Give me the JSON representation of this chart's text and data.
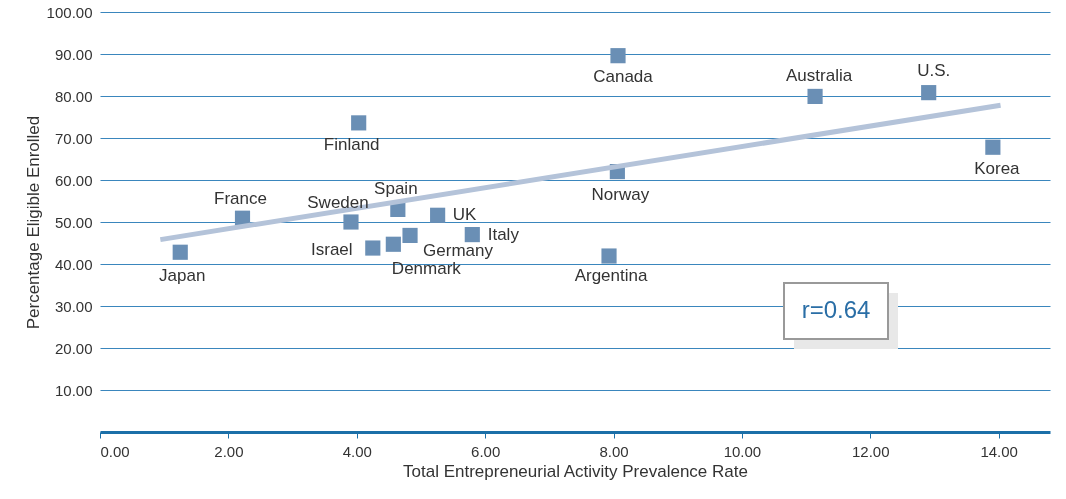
{
  "chart_data": {
    "type": "scatter",
    "xlabel": "Total Entrepreneurial Activity Prevalence Rate",
    "ylabel": "Percentage Eligible Enrolled",
    "xlim": [
      0,
      14.8
    ],
    "ylim": [
      0,
      100
    ],
    "xticks": [
      {
        "value": 0,
        "label": "0.00"
      },
      {
        "value": 2,
        "label": "2.00"
      },
      {
        "value": 4,
        "label": "4.00"
      },
      {
        "value": 6,
        "label": "6.00"
      },
      {
        "value": 8,
        "label": "8.00"
      },
      {
        "value": 10,
        "label": "10.00"
      },
      {
        "value": 12,
        "label": "12.00"
      },
      {
        "value": 14,
        "label": "14.00"
      }
    ],
    "yticks": [
      {
        "value": 10,
        "label": "10.00"
      },
      {
        "value": 20,
        "label": "20.00"
      },
      {
        "value": 30,
        "label": "30.00"
      },
      {
        "value": 40,
        "label": "40.00"
      },
      {
        "value": 50,
        "label": "50.00"
      },
      {
        "value": 60,
        "label": "60.00"
      },
      {
        "value": 70,
        "label": "70.00"
      },
      {
        "value": 80,
        "label": "80.00"
      },
      {
        "value": 90,
        "label": "90.00"
      },
      {
        "value": 100,
        "label": "100.00"
      }
    ],
    "grid": "y",
    "series": [
      {
        "type": "scatter",
        "marker": "square",
        "color": "#6a8fb5",
        "x": [
          1.25,
          2.22,
          3.91,
          4.03,
          4.25,
          4.57,
          4.64,
          4.83,
          5.26,
          5.8,
          7.93,
          8.06,
          8.07,
          11.14,
          12.91,
          13.91
        ],
        "values": [
          42.8,
          50.9,
          50.0,
          73.6,
          43.8,
          44.7,
          53.0,
          46.8,
          51.6,
          47.0,
          41.9,
          62.0,
          89.6,
          79.9,
          80.8,
          67.8
        ]
      },
      {
        "type": "line",
        "marker": "none",
        "color": "#b4c3d9",
        "x": [
          0.94,
          14.03
        ],
        "values": [
          45.8,
          77.8
        ]
      }
    ],
    "annotations": [
      {
        "text": "Japan",
        "x": 1.25,
        "y": 42.8
      },
      {
        "text": "France",
        "x": 2.22,
        "y": 50.9
      },
      {
        "text": "Sweden",
        "x": 3.91,
        "y": 50.0
      },
      {
        "text": "Finland",
        "x": 4.03,
        "y": 73.6
      },
      {
        "text": "Israel",
        "x": 4.25,
        "y": 43.8
      },
      {
        "text": "Denmark",
        "x": 4.57,
        "y": 44.7
      },
      {
        "text": "Spain",
        "x": 4.64,
        "y": 53.0
      },
      {
        "text": "Germany",
        "x": 4.83,
        "y": 46.8
      },
      {
        "text": "UK",
        "x": 5.26,
        "y": 51.6
      },
      {
        "text": "Italy",
        "x": 5.8,
        "y": 47.0
      },
      {
        "text": "Argentina",
        "x": 7.93,
        "y": 41.9
      },
      {
        "text": "Norway",
        "x": 8.06,
        "y": 62.0
      },
      {
        "text": "Canada",
        "x": 8.07,
        "y": 89.6
      },
      {
        "text": "Australia",
        "x": 11.14,
        "y": 79.9
      },
      {
        "text": "U.S.",
        "x": 12.91,
        "y": 80.8
      },
      {
        "text": "Korea",
        "x": 13.91,
        "y": 67.8
      },
      "r=0.64"
    ]
  }
}
